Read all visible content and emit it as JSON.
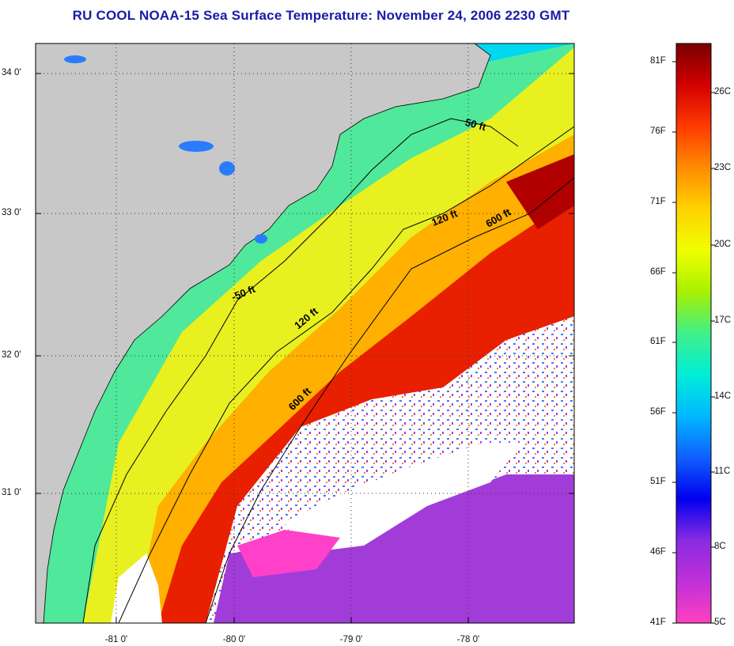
{
  "title": "RU COOL  NOAA-15  Sea Surface Temperature:  November 24, 2006 2230 GMT",
  "map": {
    "lat_labels": [
      "34 0'",
      "33 0'",
      "32 0'",
      "31 0'"
    ],
    "lon_labels": [
      "-81 0'",
      "-80 0'",
      "-79 0'",
      "-78 0'"
    ],
    "isobath_labels": [
      "50 ft",
      "120 ft",
      "600 ft",
      "-50 ft",
      "120 ft",
      "600 ft"
    ],
    "land_color": "#c8c8c8",
    "cloud_color": "#ffffff"
  },
  "colorbar": {
    "fahrenheit_labels": [
      "81F",
      "76F",
      "71F",
      "66F",
      "61F",
      "56F",
      "51F",
      "46F",
      "41F"
    ],
    "celsius_labels": [
      "26C",
      "23C",
      "20C",
      "17C",
      "14C",
      "11C",
      "8C",
      "5C"
    ],
    "gradient_stops": [
      "#7a0000",
      "#d20000",
      "#ff3a00",
      "#ff8c00",
      "#ffd200",
      "#f0ff00",
      "#a8f000",
      "#3ff08a",
      "#00eed8",
      "#00b8ff",
      "#1060ff",
      "#0000ee",
      "#8a2be2",
      "#c030d8",
      "#ff40c0"
    ]
  }
}
